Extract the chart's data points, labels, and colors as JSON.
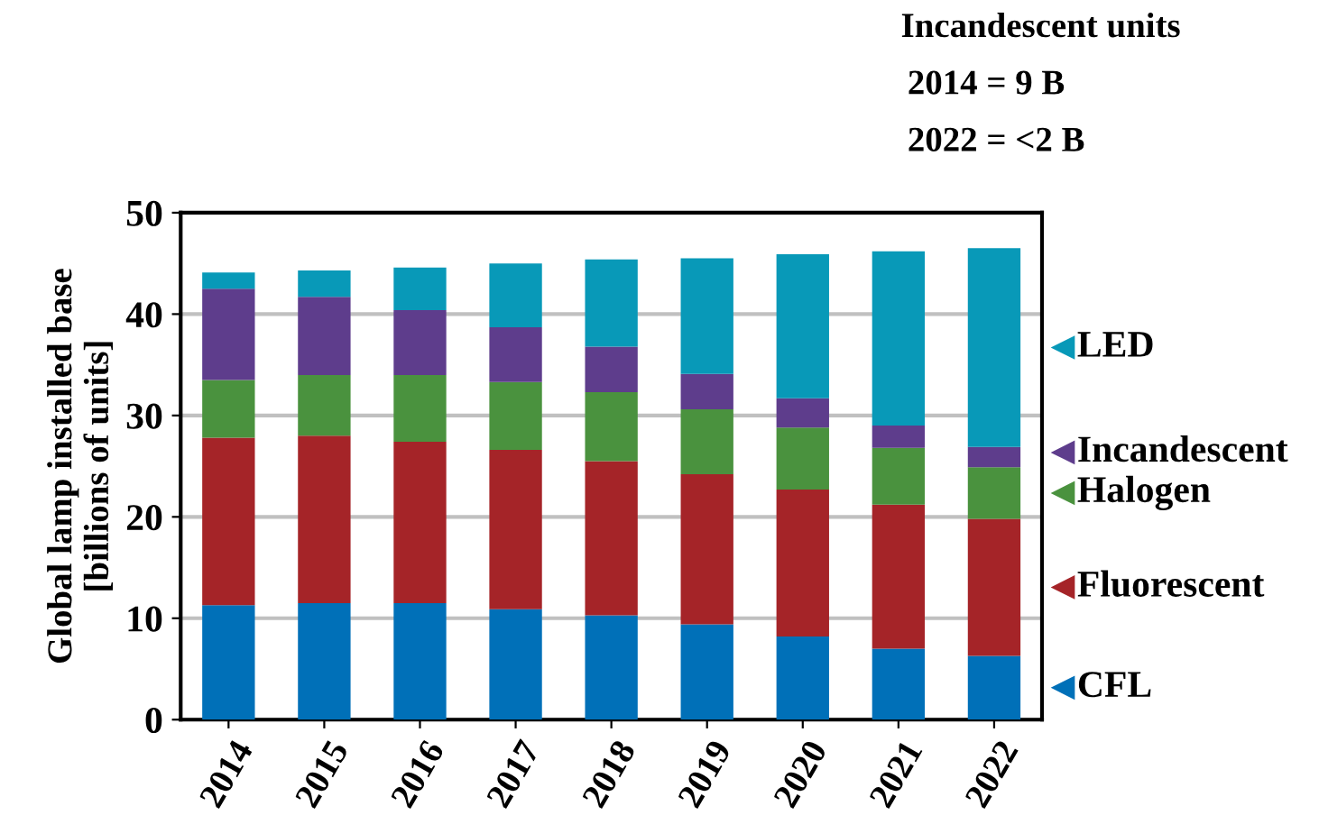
{
  "chart_data": {
    "type": "bar",
    "stacked": true,
    "categories": [
      "2014",
      "2015",
      "2016",
      "2017",
      "2018",
      "2019",
      "2020",
      "2021",
      "2022"
    ],
    "ylabel": "Global lamp installed base\n[billions of units]",
    "ylim": [
      0,
      50
    ],
    "yticks": [
      0,
      10,
      20,
      30,
      40,
      50
    ],
    "grid": "y",
    "legend": "right",
    "annotations": [
      "Incandescent units",
      "2014 = 9 B",
      "2022 = <2 B"
    ],
    "series": [
      {
        "name": "CFL",
        "color": "#0070b8",
        "values": [
          11.3,
          11.5,
          11.5,
          10.9,
          10.3,
          9.4,
          8.2,
          7.0,
          6.3
        ]
      },
      {
        "name": "Fluorescent",
        "color": "#a52428",
        "values": [
          16.5,
          16.5,
          15.9,
          15.7,
          15.2,
          14.8,
          14.5,
          14.2,
          13.5
        ]
      },
      {
        "name": "Halogen",
        "color": "#4a923e",
        "values": [
          5.7,
          6.0,
          6.6,
          6.7,
          6.8,
          6.4,
          6.1,
          5.6,
          5.1
        ]
      },
      {
        "name": "Incandescent",
        "color": "#5e3d8c",
        "values": [
          9.0,
          7.7,
          6.4,
          5.4,
          4.5,
          3.5,
          2.9,
          2.2,
          2.0
        ]
      },
      {
        "name": "LED",
        "color": "#0899b8",
        "values": [
          1.6,
          2.6,
          4.2,
          6.3,
          8.6,
          11.4,
          14.2,
          17.2,
          19.6
        ]
      }
    ]
  }
}
